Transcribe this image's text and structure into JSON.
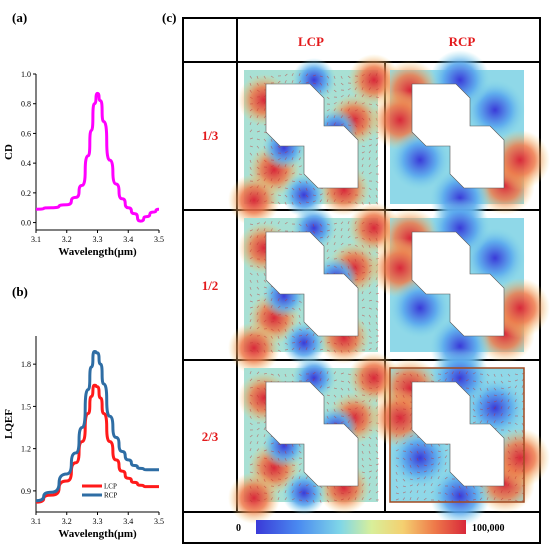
{
  "panels": {
    "a_label": "(a)",
    "b_label": "(b)",
    "c_label": "(c)"
  },
  "chart_a": {
    "type": "line",
    "xlabel": "Wavelength(μm)",
    "ylabel": "CD",
    "xlim": [
      3.1,
      3.5
    ],
    "ylim": [
      -0.05,
      1.0
    ],
    "x_ticks": [
      "3.1",
      "3.2",
      "3.3",
      "3.4",
      "3.5"
    ],
    "y_ticks": [
      "0.0",
      "0.2",
      "0.4",
      "0.6",
      "0.8",
      "1.0"
    ],
    "color": "#ff00ff",
    "x": [
      3.1,
      3.15,
      3.2,
      3.23,
      3.25,
      3.27,
      3.28,
      3.29,
      3.3,
      3.31,
      3.32,
      3.34,
      3.36,
      3.38,
      3.4,
      3.42,
      3.44,
      3.46,
      3.48,
      3.5
    ],
    "y": [
      0.09,
      0.1,
      0.12,
      0.17,
      0.25,
      0.45,
      0.62,
      0.8,
      0.87,
      0.82,
      0.68,
      0.42,
      0.26,
      0.16,
      0.1,
      0.06,
      0.01,
      0.04,
      0.07,
      0.09
    ]
  },
  "chart_b": {
    "type": "line",
    "xlabel": "Wavelength(μm)",
    "ylabel": "LQEF",
    "xlim": [
      3.1,
      3.5
    ],
    "ylim": [
      0.75,
      2.0
    ],
    "x_ticks": [
      "3.1",
      "3.2",
      "3.3",
      "3.4",
      "3.5"
    ],
    "y_ticks": [
      "0.9",
      "1.2",
      "1.5",
      "1.8"
    ],
    "series": [
      {
        "name": "LCP",
        "color": "#ff1a1a",
        "x": [
          3.1,
          3.15,
          3.2,
          3.23,
          3.25,
          3.27,
          3.28,
          3.29,
          3.3,
          3.31,
          3.32,
          3.34,
          3.36,
          3.38,
          3.4,
          3.42,
          3.44,
          3.46,
          3.48,
          3.5
        ],
        "y": [
          0.82,
          0.87,
          0.97,
          1.1,
          1.25,
          1.45,
          1.57,
          1.65,
          1.64,
          1.56,
          1.45,
          1.25,
          1.12,
          1.04,
          0.99,
          0.96,
          0.94,
          0.93,
          0.93,
          0.93
        ]
      },
      {
        "name": "RCP",
        "color": "#2e6da4",
        "x": [
          3.1,
          3.15,
          3.2,
          3.23,
          3.25,
          3.27,
          3.28,
          3.29,
          3.3,
          3.31,
          3.32,
          3.34,
          3.36,
          3.38,
          3.4,
          3.42,
          3.44,
          3.46,
          3.48,
          3.5
        ],
        "y": [
          0.83,
          0.89,
          1.02,
          1.17,
          1.35,
          1.62,
          1.78,
          1.89,
          1.88,
          1.8,
          1.66,
          1.43,
          1.28,
          1.18,
          1.12,
          1.08,
          1.06,
          1.05,
          1.05,
          1.05
        ]
      }
    ]
  },
  "grid": {
    "col_headers": [
      "LCP",
      "RCP"
    ],
    "row_headers": [
      "1/3",
      "1/2",
      "2/3"
    ],
    "colorbar_min": "0",
    "colorbar_max": "100,000"
  }
}
